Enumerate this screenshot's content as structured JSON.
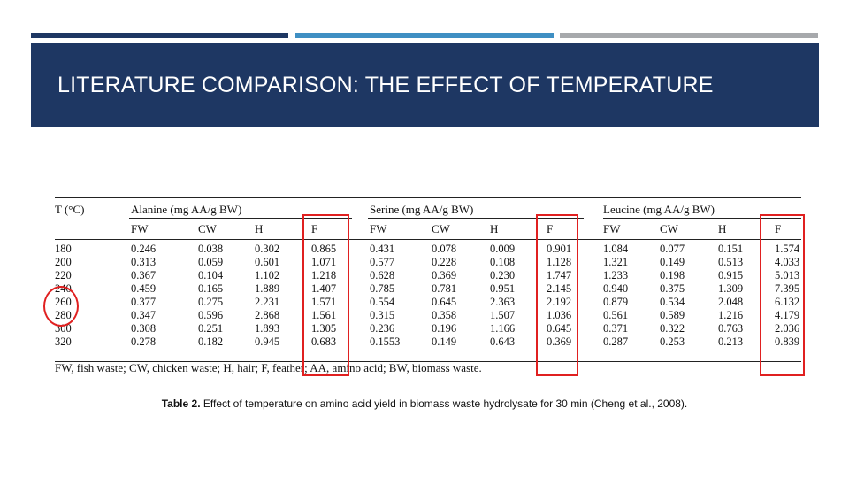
{
  "slide": {
    "title": "LITERATURE COMPARISON: THE EFFECT OF TEMPERATURE",
    "colors": {
      "banner": "#1e3763",
      "bar1": "#1e3763",
      "bar2": "#3f8fc3",
      "bar3": "#a7a9ac",
      "highlight": "#e02020"
    }
  },
  "table": {
    "temp_header": "T (°C)",
    "groups": [
      "Alanine (mg AA/g BW)",
      "Serine (mg AA/g BW)",
      "Leucine (mg AA/g BW)"
    ],
    "subheaders": [
      "FW",
      "CW",
      "H",
      "F"
    ],
    "rows": [
      [
        "180",
        "0.246",
        "0.038",
        "0.302",
        "0.865",
        "0.431",
        "0.078",
        "0.009",
        "0.901",
        "1.084",
        "0.077",
        "0.151",
        "1.574"
      ],
      [
        "200",
        "0.313",
        "0.059",
        "0.601",
        "1.071",
        "0.577",
        "0.228",
        "0.108",
        "1.128",
        "1.321",
        "0.149",
        "0.513",
        "4.033"
      ],
      [
        "220",
        "0.367",
        "0.104",
        "1.102",
        "1.218",
        "0.628",
        "0.369",
        "0.230",
        "1.747",
        "1.233",
        "0.198",
        "0.915",
        "5.013"
      ],
      [
        "240",
        "0.459",
        "0.165",
        "1.889",
        "1.407",
        "0.785",
        "0.781",
        "0.951",
        "2.145",
        "0.940",
        "0.375",
        "1.309",
        "7.395"
      ],
      [
        "260",
        "0.377",
        "0.275",
        "2.231",
        "1.571",
        "0.554",
        "0.645",
        "2.363",
        "2.192",
        "0.879",
        "0.534",
        "2.048",
        "6.132"
      ],
      [
        "280",
        "0.347",
        "0.596",
        "2.868",
        "1.561",
        "0.315",
        "0.358",
        "1.507",
        "1.036",
        "0.561",
        "0.589",
        "1.216",
        "4.179"
      ],
      [
        "300",
        "0.308",
        "0.251",
        "1.893",
        "1.305",
        "0.236",
        "0.196",
        "1.166",
        "0.645",
        "0.371",
        "0.322",
        "0.763",
        "2.036"
      ],
      [
        "320",
        "0.278",
        "0.182",
        "0.945",
        "0.683",
        "0.1553",
        "0.149",
        "0.643",
        "0.369",
        "0.287",
        "0.253",
        "0.213",
        "0.839"
      ]
    ],
    "footnote": "FW, fish waste; CW, chicken waste; H, hair; F, feather; AA, amino acid; BW, biomass waste."
  },
  "caption": {
    "label": "Table 2.",
    "text": " Effect of temperature on amino acid yield in biomass waste hydrolysate for 30 min (Cheng et al., 2008)."
  }
}
